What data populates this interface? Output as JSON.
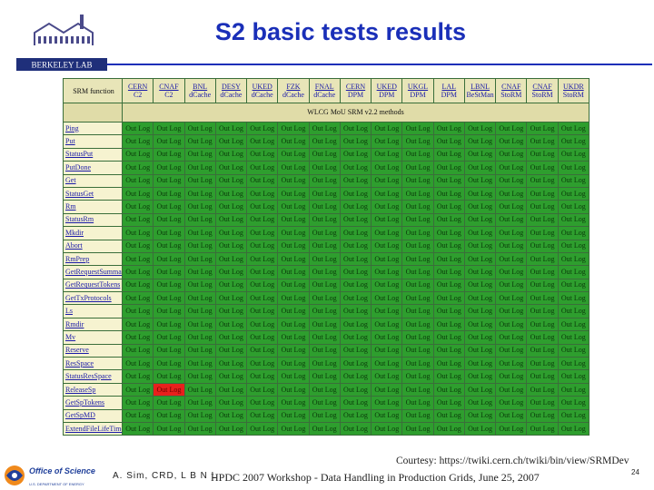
{
  "logo": {
    "label": "BERKELEY LAB"
  },
  "title": "S2 basic tests results",
  "table": {
    "corner_label": "SRM function",
    "group_label": "WLCG MoU SRM v2.2 methods",
    "columns": [
      {
        "line1": "CERN",
        "line2": "C2"
      },
      {
        "line1": "CNAF",
        "line2": "C2"
      },
      {
        "line1": "BNL",
        "line2": "dCache"
      },
      {
        "line1": "DESY",
        "line2": "dCache"
      },
      {
        "line1": "UKED",
        "line2": "dCache"
      },
      {
        "line1": "FZK",
        "line2": "dCache"
      },
      {
        "line1": "FNAL",
        "line2": "dCache"
      },
      {
        "line1": "CERN",
        "line2": "DPM"
      },
      {
        "line1": "UKED",
        "line2": "DPM"
      },
      {
        "line1": "UKGL",
        "line2": "DPM"
      },
      {
        "line1": "LAL",
        "line2": "DPM"
      },
      {
        "line1": "LBNL",
        "line2": "BeStMan"
      },
      {
        "line1": "CNAF",
        "line2": "StoRM"
      },
      {
        "line1": "CNAF",
        "line2": "StoRM"
      },
      {
        "line1": "UKDR",
        "line2": "StoRM"
      }
    ],
    "functions": [
      "Ping",
      "Put",
      "StatusPut",
      "PutDone",
      "Get",
      "StatusGet",
      "Rm",
      "StatusRm",
      "Mkdir",
      "Abort",
      "RmPrep",
      "GetRequestSummary",
      "GetRequestTokens",
      "GetTxProtocols",
      "Ls",
      "Rmdir",
      "Mv",
      "Reserve",
      "ResSpace",
      "StatusResSpace",
      "ReleaseSp",
      "GetSpTokens",
      "GetSpMD",
      "ExtendFileLifeTime"
    ],
    "cell_text": "Out Log",
    "fail_cells": [
      [
        20,
        1
      ]
    ]
  },
  "footer": {
    "doe_label": "Office of Science",
    "doe_sub": "U.S. DEPARTMENT OF ENERGY",
    "author": "A. Sim, CRD, L B N L",
    "courtesy": "Courtesy: https://twiki.cern.ch/twiki/bin/view/SRMDev",
    "workshop": "HPDC 2007 Workshop - Data Handling in Production Grids, June 25, 2007",
    "page": "24"
  },
  "colors": {
    "title": "#1a2fb8",
    "pass": "#2e9e2e",
    "fail": "#e8201c"
  }
}
